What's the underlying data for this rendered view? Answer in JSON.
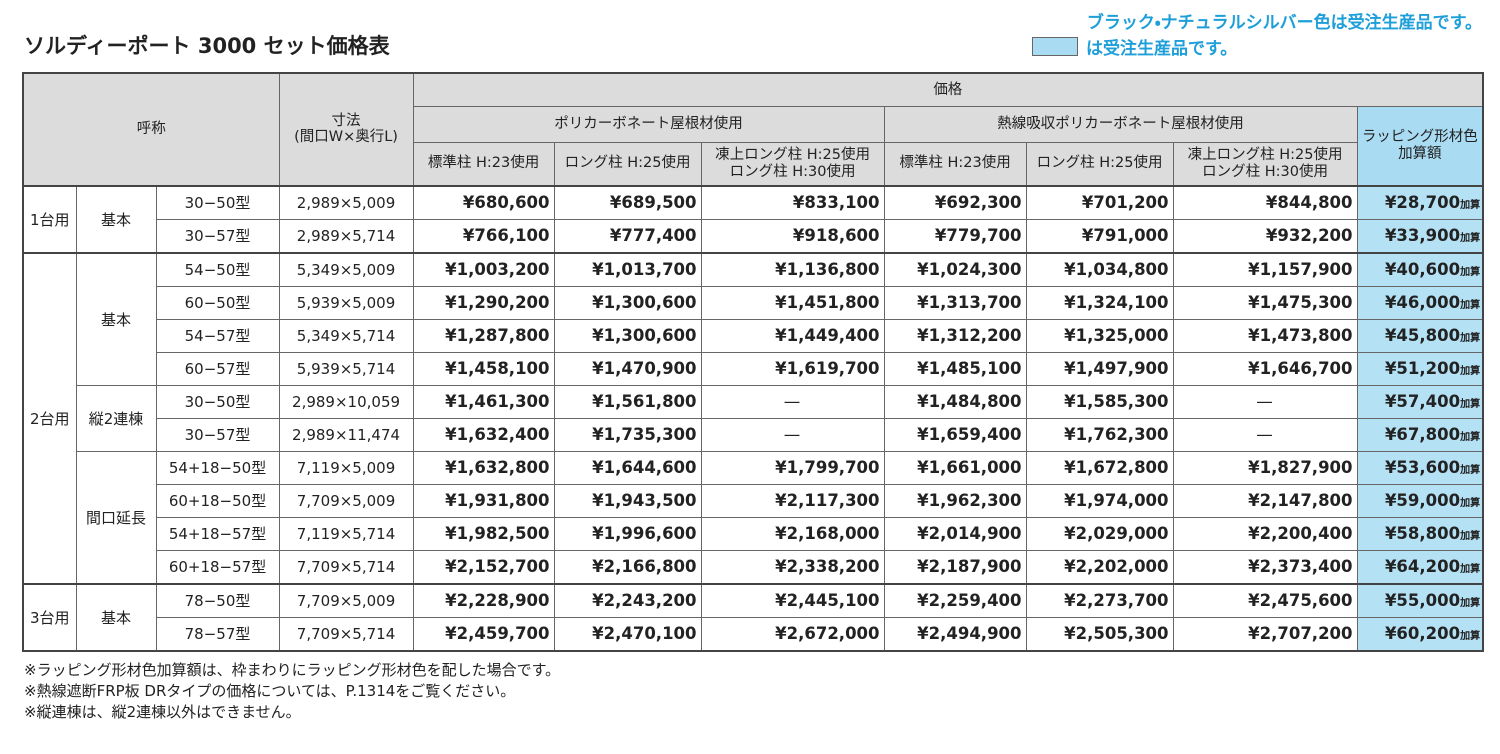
{
  "header": {
    "title": "ソルディーポート 3000 セット価格表",
    "note1": "ブラック・ナチュラルシルバー色は受注生産品です。",
    "note2": "は受注生産品です。"
  },
  "table": {
    "head": {
      "name": "呼称",
      "dimension": [
        "寸法",
        "(間口W×奥行L)"
      ],
      "price": "価格",
      "poly": "ポリカーボネート屋根材使用",
      "heat": "熱線吸収ポリカーボネート屋根材使用",
      "wrap": [
        "ラッピング形材色",
        "加算額"
      ],
      "sub": [
        "標準柱 H:23使用",
        "ロング柱 H:25使用",
        [
          "凍上ロング柱 H:25使用",
          "ロング柱 H:30使用"
        ]
      ]
    },
    "add_label": "加算",
    "groups": [
      {
        "count": "1台用",
        "types": [
          {
            "name": "基本",
            "rows": [
              {
                "model": "30−50型",
                "size": "2,989×5,009",
                "prices": [
                  "¥680,600",
                  "¥689,500",
                  "¥833,100",
                  "¥692,300",
                  "¥701,200",
                  "¥844,800"
                ],
                "wrap": "¥28,700"
              },
              {
                "model": "30−57型",
                "size": "2,989×5,714",
                "prices": [
                  "¥766,100",
                  "¥777,400",
                  "¥918,600",
                  "¥779,700",
                  "¥791,000",
                  "¥932,200"
                ],
                "wrap": "¥33,900"
              }
            ]
          }
        ]
      },
      {
        "count": "2台用",
        "types": [
          {
            "name": "基本",
            "rows": [
              {
                "model": "54−50型",
                "size": "5,349×5,009",
                "prices": [
                  "¥1,003,200",
                  "¥1,013,700",
                  "¥1,136,800",
                  "¥1,024,300",
                  "¥1,034,800",
                  "¥1,157,900"
                ],
                "wrap": "¥40,600"
              },
              {
                "model": "60−50型",
                "size": "5,939×5,009",
                "prices": [
                  "¥1,290,200",
                  "¥1,300,600",
                  "¥1,451,800",
                  "¥1,313,700",
                  "¥1,324,100",
                  "¥1,475,300"
                ],
                "wrap": "¥46,000"
              },
              {
                "model": "54−57型",
                "size": "5,349×5,714",
                "prices": [
                  "¥1,287,800",
                  "¥1,300,600",
                  "¥1,449,400",
                  "¥1,312,200",
                  "¥1,325,000",
                  "¥1,473,800"
                ],
                "wrap": "¥45,800"
              },
              {
                "model": "60−57型",
                "size": "5,939×5,714",
                "prices": [
                  "¥1,458,100",
                  "¥1,470,900",
                  "¥1,619,700",
                  "¥1,485,100",
                  "¥1,497,900",
                  "¥1,646,700"
                ],
                "wrap": "¥51,200"
              }
            ]
          },
          {
            "name": "縦2連棟",
            "rows": [
              {
                "model": "30−50型",
                "size": "2,989×10,059",
                "prices": [
                  "¥1,461,300",
                  "¥1,561,800",
                  "—",
                  "¥1,484,800",
                  "¥1,585,300",
                  "—"
                ],
                "wrap": "¥57,400"
              },
              {
                "model": "30−57型",
                "size": "2,989×11,474",
                "prices": [
                  "¥1,632,400",
                  "¥1,735,300",
                  "—",
                  "¥1,659,400",
                  "¥1,762,300",
                  "—"
                ],
                "wrap": "¥67,800"
              }
            ]
          },
          {
            "name": "間口延長",
            "rows": [
              {
                "model": "54+18−50型",
                "size": "7,119×5,009",
                "prices": [
                  "¥1,632,800",
                  "¥1,644,600",
                  "¥1,799,700",
                  "¥1,661,000",
                  "¥1,672,800",
                  "¥1,827,900"
                ],
                "wrap": "¥53,600"
              },
              {
                "model": "60+18−50型",
                "size": "7,709×5,009",
                "prices": [
                  "¥1,931,800",
                  "¥1,943,500",
                  "¥2,117,300",
                  "¥1,962,300",
                  "¥1,974,000",
                  "¥2,147,800"
                ],
                "wrap": "¥59,000"
              },
              {
                "model": "54+18−57型",
                "size": "7,119×5,714",
                "prices": [
                  "¥1,982,500",
                  "¥1,996,600",
                  "¥2,168,000",
                  "¥2,014,900",
                  "¥2,029,000",
                  "¥2,200,400"
                ],
                "wrap": "¥58,800"
              },
              {
                "model": "60+18−57型",
                "size": "7,709×5,714",
                "prices": [
                  "¥2,152,700",
                  "¥2,166,800",
                  "¥2,338,200",
                  "¥2,187,900",
                  "¥2,202,000",
                  "¥2,373,400"
                ],
                "wrap": "¥64,200"
              }
            ]
          }
        ]
      },
      {
        "count": "3台用",
        "types": [
          {
            "name": "基本",
            "rows": [
              {
                "model": "78−50型",
                "size": "7,709×5,009",
                "prices": [
                  "¥2,228,900",
                  "¥2,243,200",
                  "¥2,445,100",
                  "¥2,259,400",
                  "¥2,273,700",
                  "¥2,475,600"
                ],
                "wrap": "¥55,000"
              },
              {
                "model": "78−57型",
                "size": "7,709×5,714",
                "prices": [
                  "¥2,459,700",
                  "¥2,470,100",
                  "¥2,672,000",
                  "¥2,494,900",
                  "¥2,505,300",
                  "¥2,707,200"
                ],
                "wrap": "¥60,200"
              }
            ]
          }
        ]
      }
    ]
  },
  "footnotes": [
    "※ラッピング形材色加算額は、枠まわりにラッピング形材色を配した場合です。",
    "※熱線遮断FRP板 DRタイプの価格については、P.1314をご覧ください。",
    "※縦連棟は、縦2連棟以外はできません。"
  ]
}
